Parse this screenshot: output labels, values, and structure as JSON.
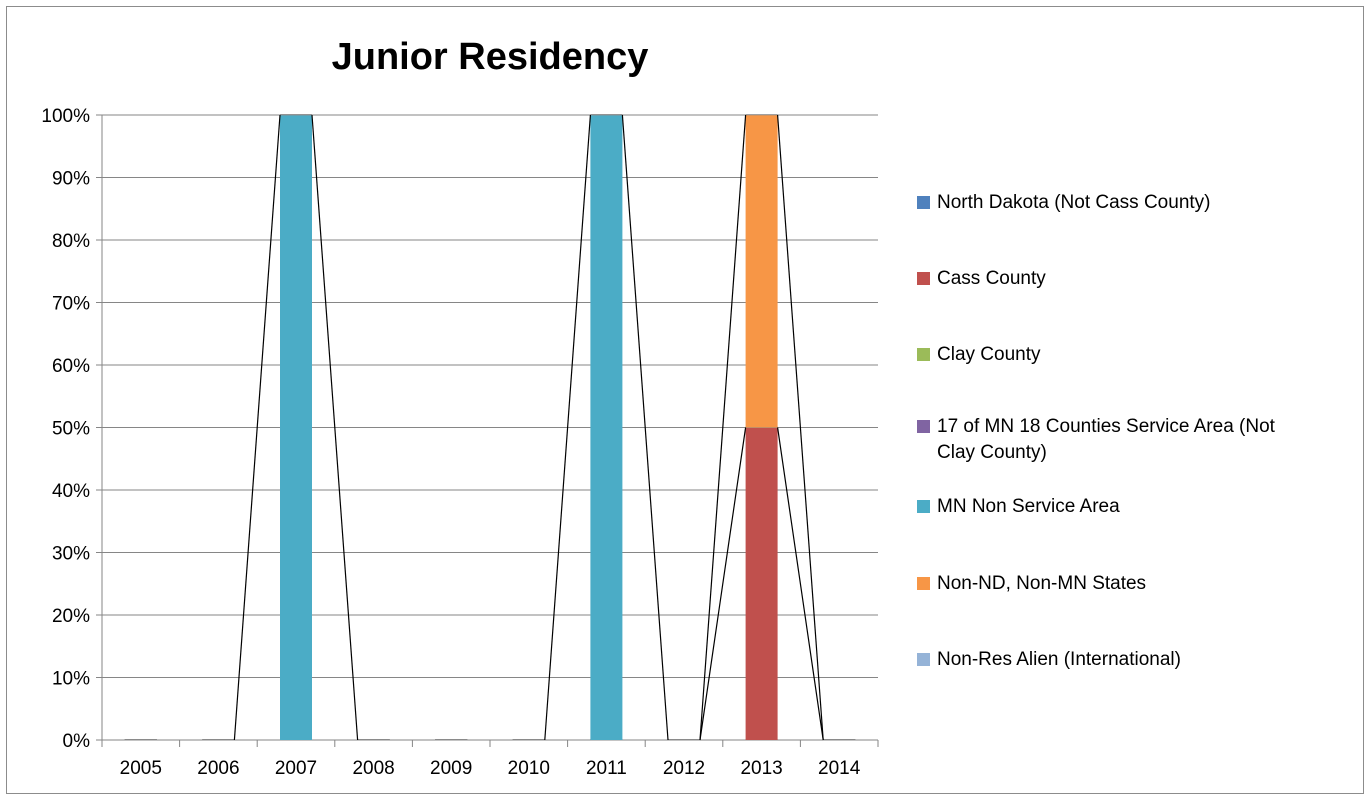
{
  "chart_data": {
    "type": "bar",
    "stacked": true,
    "title": "Junior Residency",
    "xlabel": "",
    "ylabel": "",
    "categories": [
      "2005",
      "2006",
      "2007",
      "2008",
      "2009",
      "2010",
      "2011",
      "2012",
      "2013",
      "2014"
    ],
    "ylim": [
      0,
      100
    ],
    "y_ticks": [
      "0%",
      "10%",
      "20%",
      "30%",
      "40%",
      "50%",
      "60%",
      "70%",
      "80%",
      "90%",
      "100%"
    ],
    "grid": true,
    "legend_position": "right",
    "series": [
      {
        "name": "North Dakota (Not Cass County)",
        "color": "#4f81bd",
        "values": [
          0,
          0,
          0,
          0,
          0,
          0,
          0,
          0,
          0,
          0
        ]
      },
      {
        "name": "Cass County",
        "color": "#c0504d",
        "values": [
          0,
          0,
          0,
          0,
          0,
          0,
          0,
          0,
          50,
          0
        ]
      },
      {
        "name": "Clay County",
        "color": "#9bbb59",
        "values": [
          0,
          0,
          0,
          0,
          0,
          0,
          0,
          0,
          0,
          0
        ]
      },
      {
        "name": "17 of MN 18 Counties Service Area (Not Clay County)",
        "color": "#8064a2",
        "values": [
          0,
          0,
          0,
          0,
          0,
          0,
          0,
          0,
          0,
          0
        ]
      },
      {
        "name": "MN Non Service Area",
        "color": "#4bacc6",
        "values": [
          0,
          0,
          100,
          0,
          0,
          0,
          100,
          0,
          0,
          0
        ]
      },
      {
        "name": "Non-ND, Non-MN States",
        "color": "#f79646",
        "values": [
          0,
          0,
          0,
          0,
          0,
          0,
          0,
          0,
          50,
          0
        ]
      },
      {
        "name": "Non-Res Alien (International)",
        "color": "#95b3d7",
        "values": [
          0,
          0,
          0,
          0,
          0,
          0,
          0,
          0,
          0,
          0
        ]
      }
    ]
  }
}
